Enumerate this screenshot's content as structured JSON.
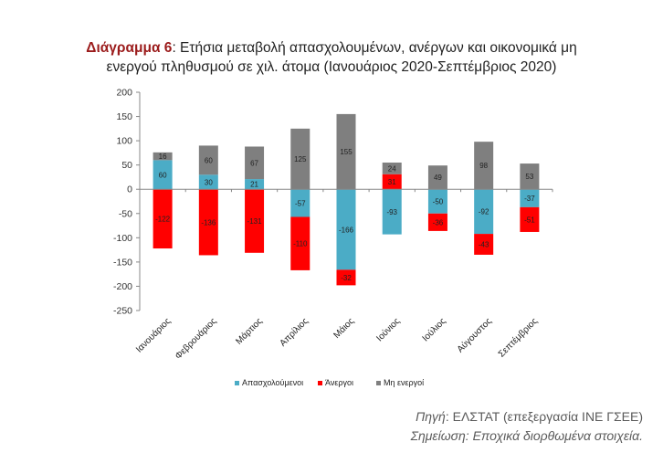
{
  "header": {
    "title_prefix": "Διάγραμμα 6",
    "title_text": ": Ετήσια μεταβολή απασχολουμένων, ανέργων και οικονομικά μη",
    "title_line2": "ενεργού πληθυσμού σε χιλ. άτομα (Ιανουάριος 2020-Σεπτέμβριος 2020)"
  },
  "footer": {
    "source_label": "Πηγή",
    "source_text": ": ΕΛΣΤΑΤ (επεξεργασία ΙΝΕ ΓΣΕΕ)",
    "note": "Σημείωση: Εποχικά διορθωμένα στοιχεία."
  },
  "chart_data": {
    "type": "bar",
    "stacked": true,
    "categories": [
      "Ιανουάριος",
      "Φεβρουάριος",
      "Μάρτιος",
      "Απρίλιος",
      "Μάιος",
      "Ιούνιος",
      "Ιούλιος",
      "Αύγουστος",
      "Σεπτέμβριος"
    ],
    "series": [
      {
        "name": "Απασχολούμενοι",
        "color": "#4bacc6",
        "values": [
          60,
          30,
          21,
          -57,
          -166,
          -93,
          -50,
          -92,
          -37
        ]
      },
      {
        "name": "Άνεργοι",
        "color": "#ff0000",
        "values": [
          -122,
          -136,
          -131,
          -110,
          -32,
          31,
          -36,
          -43,
          -51
        ]
      },
      {
        "name": "Μη ενεργοί",
        "color": "#7f7f7f",
        "values": [
          16,
          60,
          67,
          125,
          155,
          24,
          49,
          98,
          53
        ]
      }
    ],
    "ylim": [
      -250,
      200
    ],
    "yticks": [
      -250,
      -200,
      -150,
      -100,
      -50,
      0,
      50,
      100,
      150,
      200
    ],
    "legend": "bottom",
    "grid": false
  }
}
